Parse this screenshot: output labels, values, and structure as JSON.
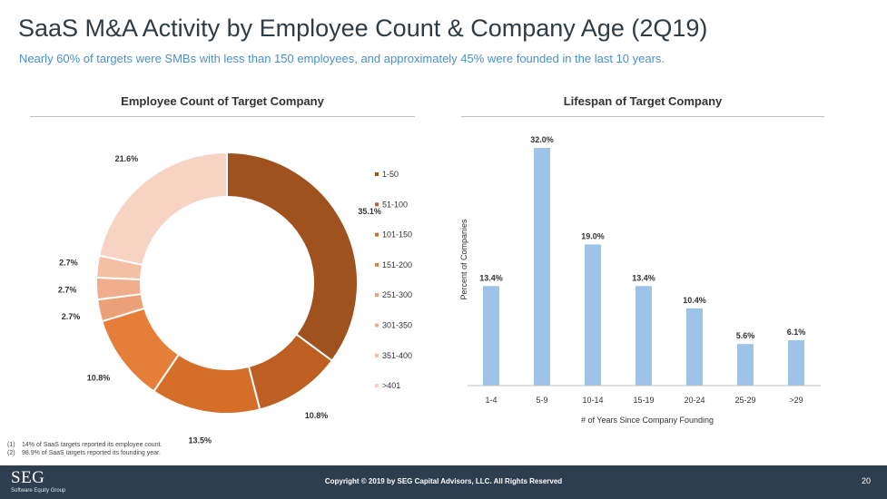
{
  "title": "SaaS M&A Activity by Employee Count & Company Age (2Q19)",
  "subtitle": "Nearly 60% of targets were SMBs with less than 150 employees, and approximately 45% were founded in the last 10 years.",
  "chart_data": [
    {
      "type": "pie",
      "title": "Employee Count of Target Company",
      "donut": true,
      "legend_position": "right",
      "slices": [
        {
          "label": "1-50",
          "value": 35.1,
          "display": "35.1%",
          "color": "#a0521e"
        },
        {
          "label": "51-100",
          "value": 10.8,
          "display": "10.8%",
          "color": "#bd5f22"
        },
        {
          "label": "101-150",
          "value": 13.5,
          "display": "13.5%",
          "color": "#d46e28"
        },
        {
          "label": "151-200",
          "value": 10.8,
          "display": "10.8%",
          "color": "#e47e38"
        },
        {
          "label": "251-300",
          "value": 2.7,
          "display": "2.7%",
          "color": "#eca077"
        },
        {
          "label": "301-350",
          "value": 2.7,
          "display": "2.7%",
          "color": "#f0ae8d"
        },
        {
          "label": "351-400",
          "value": 2.7,
          "display": "2.7%",
          "color": "#f3bfa5"
        },
        {
          "label": ">401",
          "value": 21.6,
          "display": "21.6%",
          "color": "#f7d3c3"
        }
      ]
    },
    {
      "type": "bar",
      "title": "Lifespan of Target Company",
      "xlabel": "# of Years Since Company Founding",
      "ylabel": "Percent of Companies",
      "categories": [
        "1-4",
        "5-9",
        "10-14",
        "15-19",
        "20-24",
        "25-29",
        ">29"
      ],
      "values": [
        13.4,
        32.0,
        19.0,
        13.4,
        10.4,
        5.6,
        6.1
      ],
      "value_labels": [
        "13.4%",
        "32.0%",
        "19.0%",
        "13.4%",
        "10.4%",
        "5.6%",
        "6.1%"
      ],
      "ylim": [
        0,
        32
      ],
      "bar_color": "#9dc3e6",
      "grid": false
    }
  ],
  "footnotes": [
    {
      "num": "(1)",
      "text": "14% of SaaS targets reported its employee count."
    },
    {
      "num": "(2)",
      "text": "98.9% of SaaS targets reported its founding year."
    }
  ],
  "footer": {
    "logo": "SEG",
    "logo_sub": "Software Equity Group",
    "copyright": "Copyright © 2019 by SEG Capital Advisors, LLC. All Rights Reserved",
    "page": "20"
  }
}
